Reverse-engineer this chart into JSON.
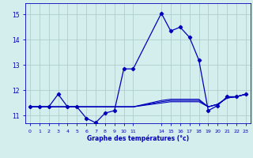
{
  "xlabel": "Graphe des températures (°c)",
  "background_color": "#d4eded",
  "line_color": "#0000bb",
  "grid_color": "#aac8c8",
  "xlim": [
    -0.5,
    23.5
  ],
  "ylim": [
    10.7,
    15.45
  ],
  "yticks": [
    11,
    12,
    13,
    14,
    15
  ],
  "xtick_positions": [
    0,
    1,
    2,
    3,
    4,
    5,
    6,
    7,
    8,
    9,
    10,
    11,
    14,
    15,
    16,
    17,
    18,
    19,
    20,
    21,
    22,
    23
  ],
  "xtick_labels": [
    "0",
    "1",
    "2",
    "3",
    "4",
    "5",
    "6",
    "7",
    "8",
    "9",
    "10",
    "11",
    "14",
    "15",
    "16",
    "17",
    "18",
    "19",
    "20",
    "21",
    "22",
    "23"
  ],
  "series_main": {
    "x": [
      0,
      1,
      2,
      3,
      4,
      5,
      6,
      7,
      8,
      9,
      10,
      11,
      14,
      15,
      16,
      17,
      18,
      19,
      20,
      21,
      22,
      23
    ],
    "y": [
      11.35,
      11.35,
      11.35,
      11.85,
      11.35,
      11.35,
      10.9,
      10.72,
      11.1,
      11.2,
      12.85,
      12.85,
      15.05,
      14.35,
      14.5,
      14.1,
      13.2,
      11.2,
      11.4,
      11.75,
      11.75,
      11.85
    ]
  },
  "series_flat": [
    {
      "x": [
        0,
        1,
        2,
        3,
        4,
        5,
        6,
        7,
        8,
        9,
        10,
        11,
        14,
        15,
        16,
        17,
        18,
        19,
        20,
        21,
        22,
        23
      ],
      "y": [
        11.35,
        11.35,
        11.35,
        11.35,
        11.35,
        11.35,
        11.35,
        11.35,
        11.35,
        11.35,
        11.35,
        11.35,
        11.5,
        11.55,
        11.55,
        11.55,
        11.55,
        11.35,
        11.45,
        11.7,
        11.75,
        11.85
      ]
    },
    {
      "x": [
        0,
        1,
        2,
        3,
        4,
        5,
        6,
        7,
        8,
        9,
        10,
        11,
        14,
        15,
        16,
        17,
        18,
        19,
        20,
        21,
        22,
        23
      ],
      "y": [
        11.35,
        11.35,
        11.35,
        11.35,
        11.35,
        11.35,
        11.35,
        11.35,
        11.35,
        11.35,
        11.35,
        11.35,
        11.55,
        11.6,
        11.6,
        11.6,
        11.6,
        11.35,
        11.45,
        11.7,
        11.75,
        11.85
      ]
    },
    {
      "x": [
        0,
        1,
        2,
        3,
        4,
        5,
        6,
        7,
        8,
        9,
        10,
        11,
        14,
        15,
        16,
        17,
        18,
        19,
        20,
        21,
        22,
        23
      ],
      "y": [
        11.35,
        11.35,
        11.35,
        11.35,
        11.35,
        11.35,
        11.35,
        11.35,
        11.35,
        11.35,
        11.35,
        11.35,
        11.6,
        11.65,
        11.65,
        11.65,
        11.65,
        11.35,
        11.45,
        11.7,
        11.75,
        11.85
      ]
    }
  ]
}
